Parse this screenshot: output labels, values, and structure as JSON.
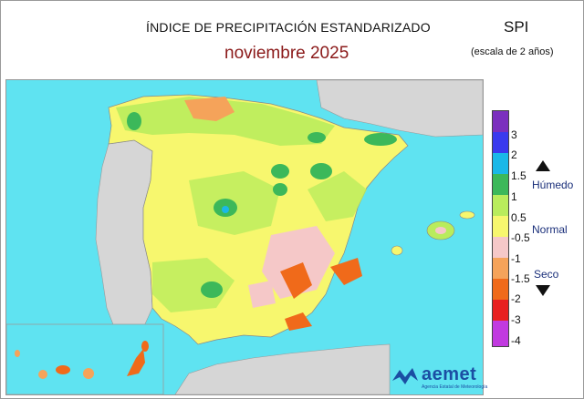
{
  "header": {
    "title": "ÍNDICE DE PRECIPITACIÓN ESTANDARIZADO",
    "period": "noviembre  2025",
    "index_name": "SPI",
    "scale_note": "(escala de 2 años)"
  },
  "legend": {
    "ticks": [
      "3",
      "2",
      "1.5",
      "1",
      "0.5",
      "-0.5",
      "-1",
      "-1.5",
      "-2",
      "-3",
      "-4"
    ],
    "colors": [
      "#7b2fbe",
      "#3a3aee",
      "#1ab8e8",
      "#3cb85a",
      "#b9ec5c",
      "#f7f76e",
      "#f5c8c8",
      "#f5a35a",
      "#f06a1a",
      "#e82020",
      "#c13ae0"
    ],
    "wet_label": "Húmedo",
    "normal_label": "Normal",
    "dry_label": "Seco"
  },
  "logo": {
    "name": "aemet",
    "subtitle": "Agencia Estatal de Meteorología"
  },
  "map_colors": {
    "sea": "#5fe3f1",
    "land_other": "#d6d6d6",
    "normal": "#f7f76e",
    "moist": "#b9ec5c",
    "wet": "#3cb85a",
    "dry_light": "#f5c8c8",
    "dry": "#f5a35a",
    "very_dry": "#f06a1a"
  }
}
